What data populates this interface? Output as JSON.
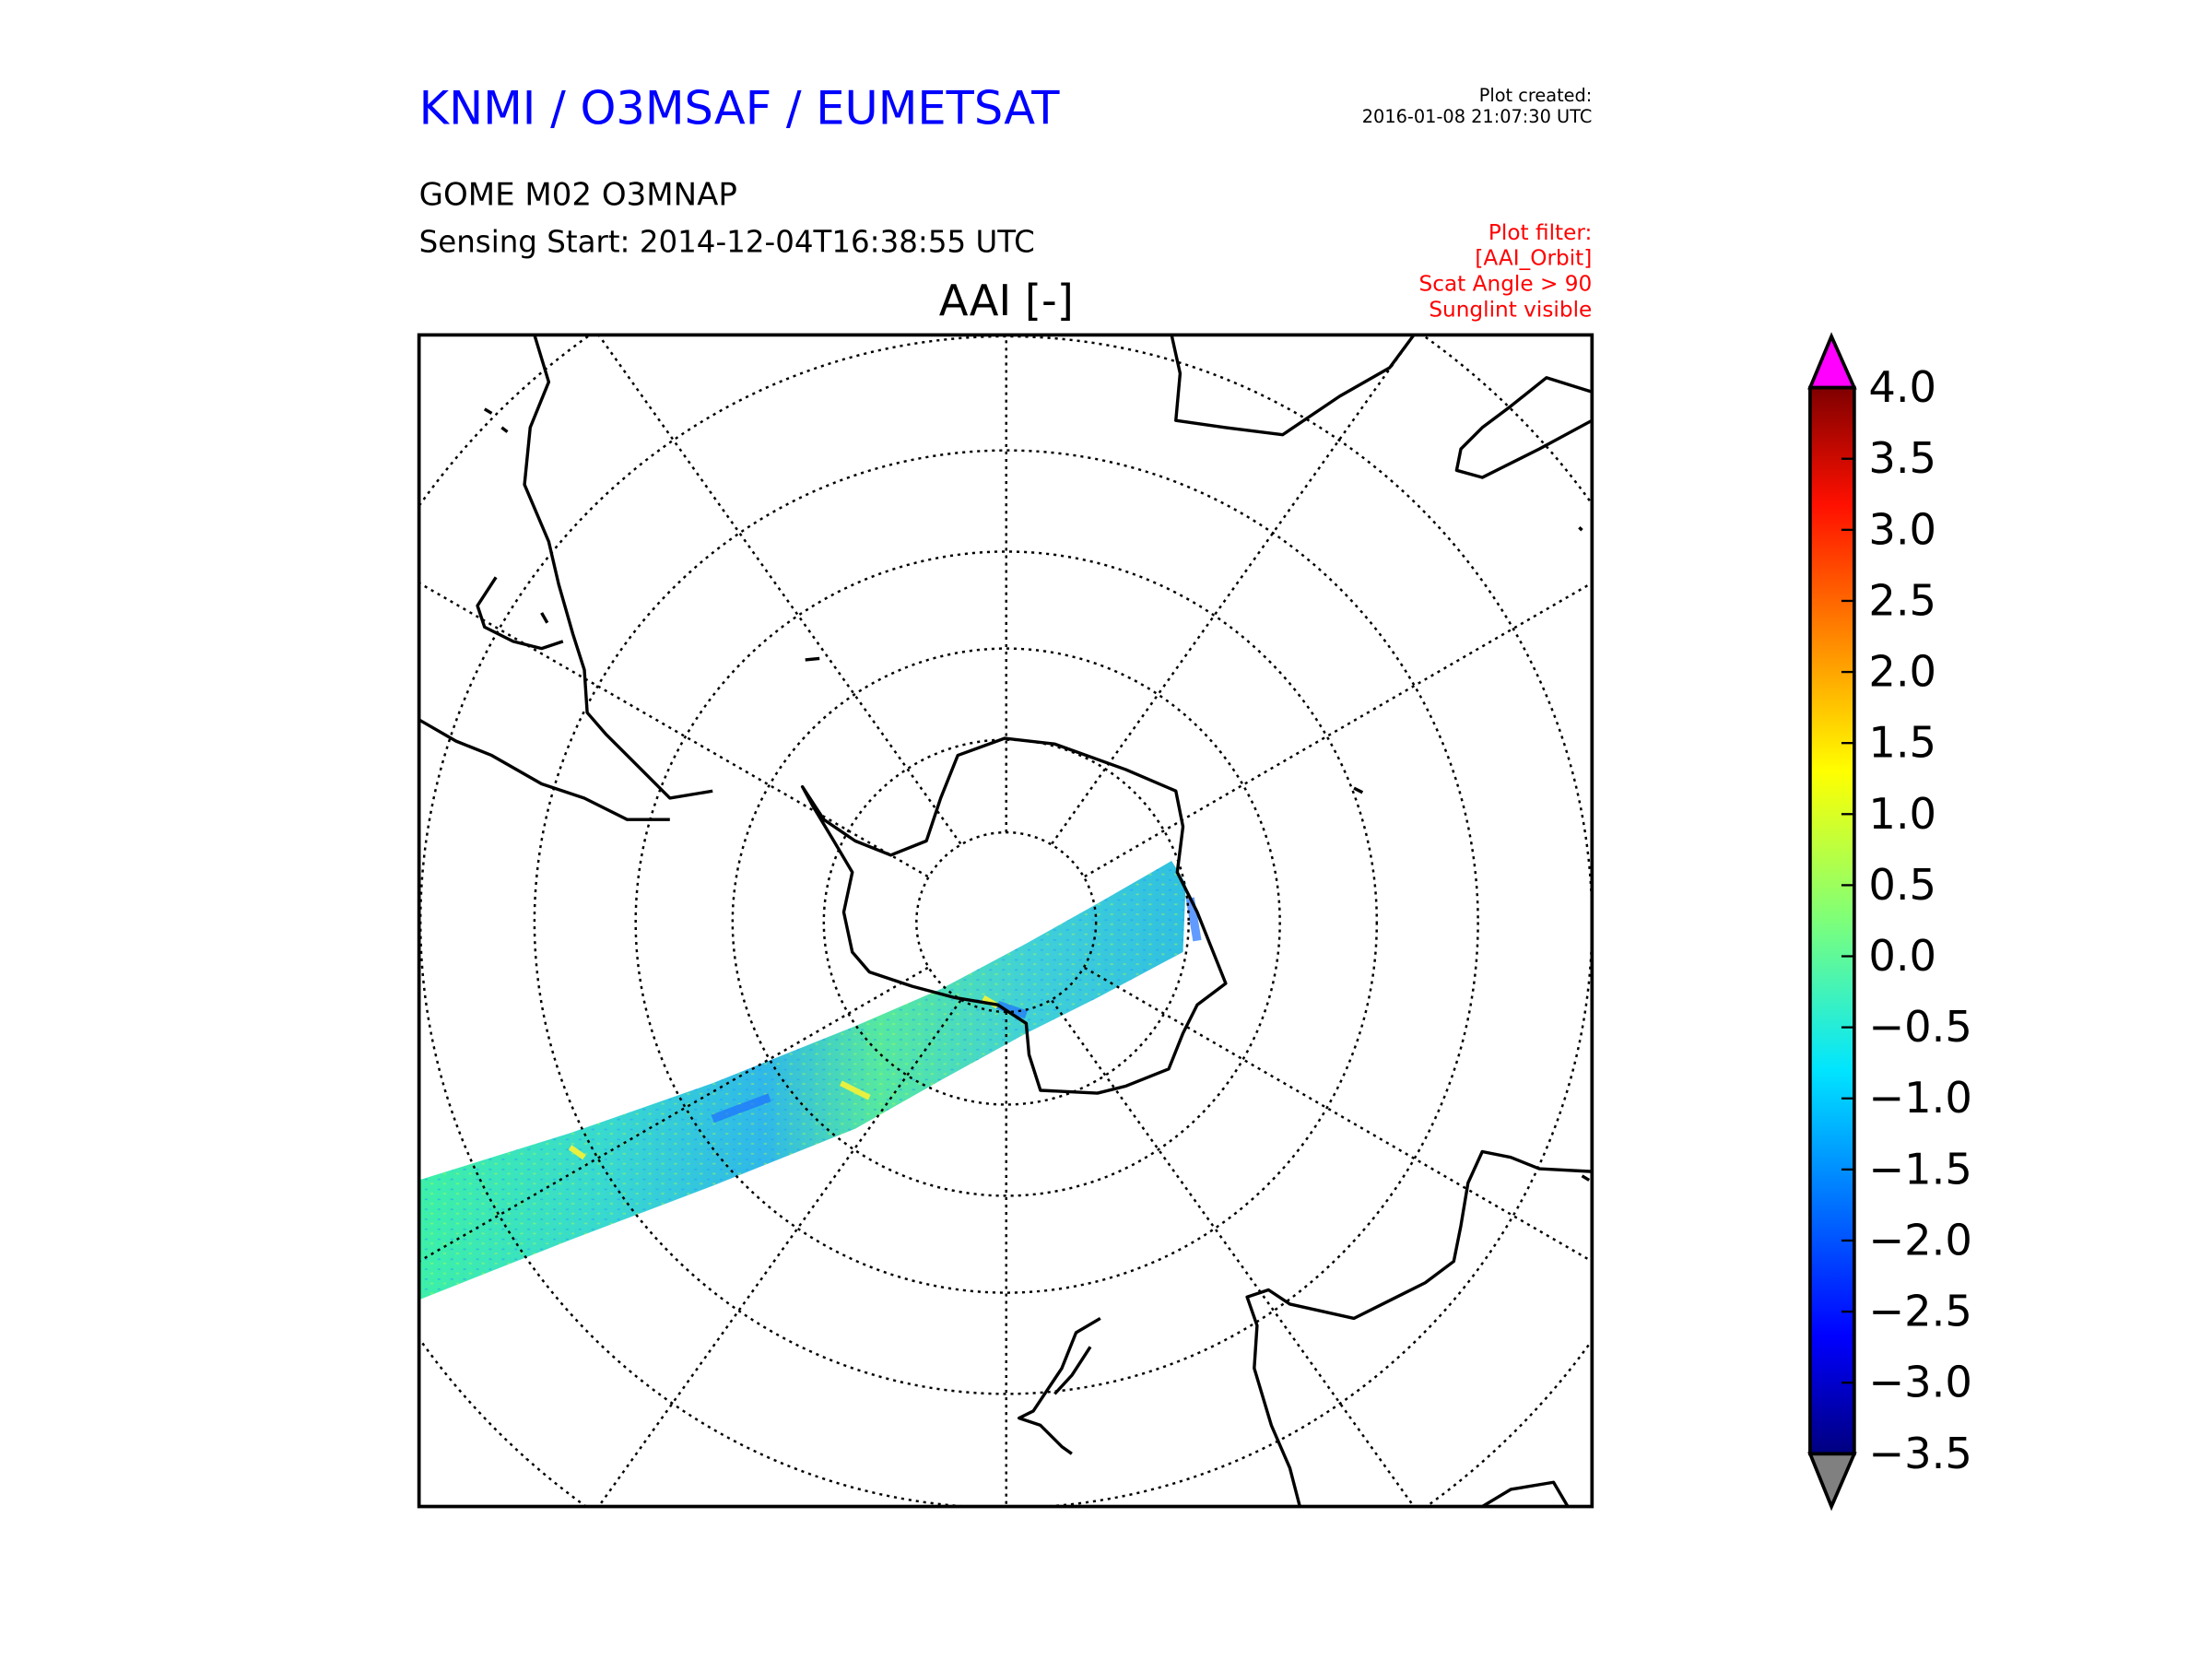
{
  "header": {
    "org_title": "KNMI / O3MSAF / EUMETSAT",
    "product": "GOME M02 O3MNAP",
    "sensing_start": "Sensing Start: 2014-12-04T16:38:55 UTC",
    "plot_created_label": "Plot created:",
    "plot_created_time": "2016-01-08 21:07:30 UTC",
    "filter": [
      "Plot filter:",
      "[AAI_Orbit]",
      "Scat Angle > 90",
      "Sunglint visible"
    ]
  },
  "map": {
    "title": "AAI [-]",
    "projection": "south-polar stereographic",
    "colors": {
      "title": "#0000ff",
      "filter": "#ff0000",
      "over": "#ff00ff",
      "under": "#808080"
    }
  },
  "colorbar": {
    "min": -3.5,
    "max": 4.0,
    "colormap": "jet",
    "ticks": [
      "4.0",
      "3.5",
      "3.0",
      "2.5",
      "2.0",
      "1.5",
      "1.0",
      "0.5",
      "0.0",
      "−0.5",
      "−1.0",
      "−1.5",
      "−2.0",
      "−2.5",
      "−3.0",
      "−3.5"
    ],
    "tick_values": [
      4.0,
      3.5,
      3.0,
      2.5,
      2.0,
      1.5,
      1.0,
      0.5,
      0.0,
      -0.5,
      -1.0,
      -1.5,
      -2.0,
      -2.5,
      -3.0,
      -3.5
    ]
  }
}
